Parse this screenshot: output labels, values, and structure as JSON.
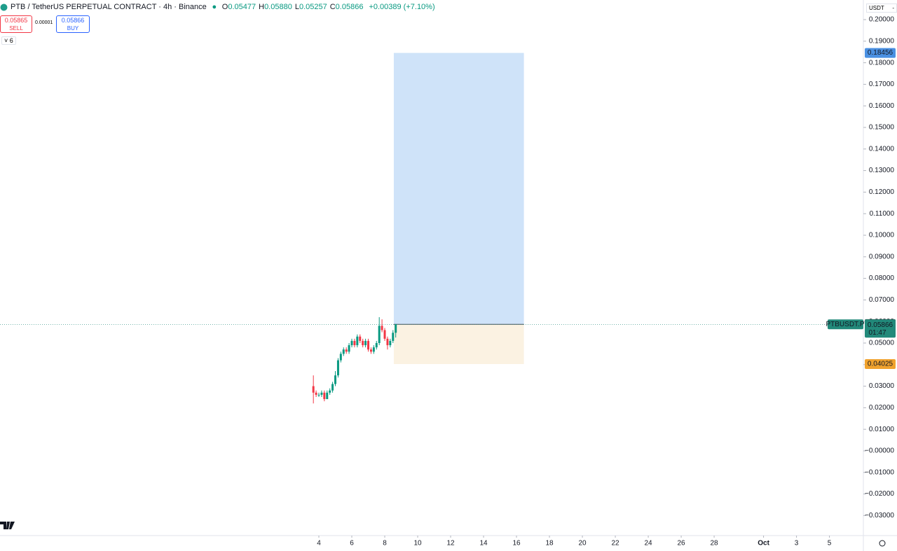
{
  "header": {
    "symbol": "PTB / TetherUS PERPETUAL CONTRACT · 4h · Binance",
    "ohlc": [
      {
        "key": "O",
        "value": "0.05477"
      },
      {
        "key": "H",
        "value": "0.05880"
      },
      {
        "key": "L",
        "value": "0.05257"
      },
      {
        "key": "C",
        "value": "0.05866"
      }
    ],
    "change": "+0.00389 (+7.10%)",
    "sell_price": "0.05865",
    "sell": "SELL",
    "spread": "0.00001",
    "buy_price": "0.05866",
    "buy": "BUY",
    "indicators": "6",
    "currency": "USDT"
  },
  "chart_data": {
    "type": "candlestick",
    "up_color": "#089981",
    "down_color": "#f23645",
    "x": [
      3.667,
      3.833,
      4,
      4.167,
      4.333,
      4.5,
      4.667,
      4.833,
      5,
      5.167,
      5.333,
      5.5,
      5.667,
      5.833,
      6,
      6.167,
      6.333,
      6.5,
      6.667,
      6.833,
      7,
      7.167,
      7.333,
      7.5,
      7.667,
      7.833,
      8,
      8.167,
      8.333,
      8.5,
      8.667
    ],
    "open": [
      0.03,
      0.027,
      0.026,
      0.026,
      0.027,
      0.024,
      0.027,
      0.028,
      0.031,
      0.035,
      0.042,
      0.045,
      0.047,
      0.046,
      0.049,
      0.051,
      0.049,
      0.053,
      0.051,
      0.049,
      0.051,
      0.047,
      0.046,
      0.048,
      0.05,
      0.058,
      0.056,
      0.052,
      0.049,
      0.051,
      0.05477
    ],
    "high": [
      0.035,
      0.028,
      0.027,
      0.028,
      0.028,
      0.028,
      0.029,
      0.032,
      0.037,
      0.043,
      0.046,
      0.048,
      0.048,
      0.05,
      0.052,
      0.052,
      0.054,
      0.054,
      0.052,
      0.052,
      0.052,
      0.048,
      0.049,
      0.051,
      0.062,
      0.061,
      0.057,
      0.053,
      0.052,
      0.056,
      0.0588
    ],
    "low": [
      0.022,
      0.025,
      0.025,
      0.025,
      0.023,
      0.024,
      0.026,
      0.027,
      0.03,
      0.034,
      0.041,
      0.044,
      0.045,
      0.045,
      0.048,
      0.048,
      0.048,
      0.05,
      0.048,
      0.048,
      0.046,
      0.045,
      0.045,
      0.047,
      0.049,
      0.055,
      0.051,
      0.047,
      0.048,
      0.05,
      0.05257
    ],
    "close": [
      0.027,
      0.026,
      0.026,
      0.027,
      0.024,
      0.027,
      0.028,
      0.031,
      0.035,
      0.042,
      0.045,
      0.047,
      0.046,
      0.049,
      0.051,
      0.049,
      0.053,
      0.051,
      0.049,
      0.051,
      0.047,
      0.046,
      0.048,
      0.05,
      0.058,
      0.056,
      0.052,
      0.049,
      0.051,
      0.05477,
      0.05866
    ],
    "xlim": [
      -15.36,
      37.06
    ],
    "xticks": [
      4,
      6,
      8,
      10,
      12,
      14,
      16,
      18,
      20,
      22,
      24,
      26,
      28,
      {
        "value": 31,
        "label": "Oct"
      },
      {
        "value": 33,
        "label": "3"
      },
      {
        "value": 35,
        "label": "5"
      }
    ],
    "ylim": [
      -0.0393,
      0.2091
    ],
    "yticks": [
      {
        "value": 0.2,
        "label": "0.20000"
      },
      {
        "value": 0.19,
        "label": "0.19000"
      },
      {
        "value": 0.18,
        "label": "0.18000"
      },
      {
        "value": 0.17,
        "label": "0.17000"
      },
      {
        "value": 0.16,
        "label": "0.16000"
      },
      {
        "value": 0.15,
        "label": "0.15000"
      },
      {
        "value": 0.14,
        "label": "0.14000"
      },
      {
        "value": 0.13,
        "label": "0.13000"
      },
      {
        "value": 0.12,
        "label": "0.12000"
      },
      {
        "value": 0.11,
        "label": "0.11000"
      },
      {
        "value": 0.1,
        "label": "0.10000"
      },
      {
        "value": 0.09,
        "label": "0.09000"
      },
      {
        "value": 0.08,
        "label": "0.08000"
      },
      {
        "value": 0.07,
        "label": "0.07000"
      },
      {
        "value": 0.06,
        "label": "0.06000"
      },
      {
        "value": 0.05,
        "label": "0.05000"
      },
      {
        "value": 0.04,
        "label": "0.04000"
      },
      {
        "value": 0.03,
        "label": "0.03000"
      },
      {
        "value": 0.02,
        "label": "0.02000"
      },
      {
        "value": 0.01,
        "label": "0.01000"
      },
      {
        "value": 0,
        "label": "−0.00000"
      },
      {
        "value": -0.01,
        "label": "−0.01000"
      },
      {
        "value": -0.02,
        "label": "−0.02000"
      },
      {
        "value": -0.03,
        "label": "−0.03000"
      }
    ],
    "position": {
      "x_start": 8.55,
      "x_end": 16.45,
      "entry": {
        "value": 0.05866,
        "label": "0.05866"
      },
      "target": {
        "value": 0.18456,
        "label": "0.18456"
      },
      "stop": {
        "value": 0.04025,
        "label": "0.04025"
      },
      "profit_color": "#cfe3f9",
      "loss_color": "#fbf2e2"
    },
    "crosshair_price": {
      "value": 0.05879,
      "label": "0.05879"
    },
    "last_price": {
      "value": 0.05866,
      "label": "0.05866",
      "ticker": "PTBUSDT.P",
      "countdown": "01:47",
      "color": "#22897a"
    }
  }
}
